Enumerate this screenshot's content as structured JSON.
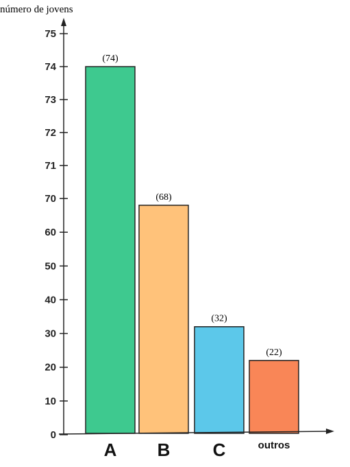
{
  "chart_data": {
    "type": "bar",
    "ylabel": "número de jovens",
    "xlabel": "",
    "categories": [
      "A",
      "B",
      "C",
      "outros"
    ],
    "values": [
      74,
      68,
      32,
      22
    ],
    "data_labels": [
      "(74)",
      "(68)",
      "(32)",
      "(22)"
    ],
    "yticks": [
      0,
      10,
      20,
      30,
      40,
      50,
      60,
      70,
      71,
      72,
      73,
      74,
      75
    ],
    "ylim": [
      0,
      75
    ],
    "axis_note": "broken y-axis: 0–70 in steps of 10, then 70–75 in steps of 1",
    "grid": false,
    "legend": "none",
    "colors": [
      "#3ec98f",
      "#ffc27a",
      "#5cc8ea",
      "#f98657"
    ]
  }
}
